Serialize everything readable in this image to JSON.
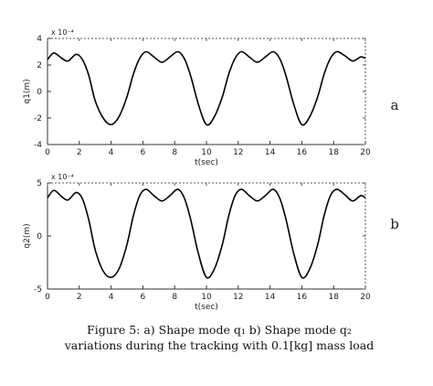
{
  "chart_data": [
    {
      "type": "line",
      "panel_label": "a",
      "xlabel": "t(sec)",
      "ylabel": "q1(m)",
      "exponent_label": "x 10⁻⁴",
      "xlim": [
        0,
        20
      ],
      "ylim": [
        -4,
        4
      ],
      "xticks": [
        0,
        2,
        4,
        6,
        8,
        10,
        12,
        14,
        16,
        18,
        20
      ],
      "xtick_labels": [
        "0",
        "2",
        "4",
        "6",
        "8",
        "10",
        "12",
        "14",
        "16",
        "18",
        "20"
      ],
      "yticks": [
        -4,
        -2,
        0,
        2,
        4
      ],
      "ytick_labels": [
        "-4",
        "-2",
        "0",
        "2",
        "4"
      ],
      "grid": false,
      "series": [
        {
          "color": "#000000",
          "x": [
            0,
            0.4,
            0.9,
            1.3,
            1.8,
            2.2,
            2.6,
            3.0,
            3.5,
            4.0,
            4.5,
            5.0,
            5.4,
            5.8,
            6.2,
            6.7,
            7.2,
            7.7,
            8.2,
            8.6,
            9.0,
            9.5,
            10.0,
            10.5,
            11.0,
            11.4,
            11.8,
            12.2,
            12.7,
            13.2,
            13.7,
            14.2,
            14.6,
            15.0,
            15.5,
            16.0,
            16.5,
            17.0,
            17.4,
            17.8,
            18.2,
            18.7,
            19.2,
            19.7,
            20.0
          ],
          "y": [
            2.4,
            2.9,
            2.5,
            2.3,
            2.8,
            2.4,
            1.2,
            -0.7,
            -2.0,
            -2.5,
            -1.9,
            -0.4,
            1.3,
            2.5,
            3.0,
            2.6,
            2.2,
            2.6,
            3.0,
            2.5,
            1.2,
            -1.0,
            -2.5,
            -1.9,
            -0.4,
            1.3,
            2.5,
            3.0,
            2.6,
            2.2,
            2.6,
            3.0,
            2.5,
            1.2,
            -1.0,
            -2.5,
            -1.9,
            -0.4,
            1.3,
            2.5,
            3.0,
            2.7,
            2.3,
            2.6,
            2.5
          ]
        }
      ]
    },
    {
      "type": "line",
      "panel_label": "b",
      "xlabel": "t(sec)",
      "ylabel": "q2(m)",
      "exponent_label": "x 10⁻⁴",
      "xlim": [
        0,
        20
      ],
      "ylim": [
        -5,
        5
      ],
      "xticks": [
        0,
        2,
        4,
        6,
        8,
        10,
        12,
        14,
        16,
        18,
        20
      ],
      "xtick_labels": [
        "0",
        "2",
        "4",
        "6",
        "8",
        "10",
        "12",
        "14",
        "16",
        "18",
        "20"
      ],
      "yticks": [
        -5,
        0,
        5
      ],
      "ytick_labels": [
        "-5",
        "0",
        "5"
      ],
      "grid": false,
      "series": [
        {
          "color": "#000000",
          "x": [
            0,
            0.4,
            0.9,
            1.3,
            1.8,
            2.2,
            2.6,
            3.0,
            3.5,
            4.0,
            4.5,
            5.0,
            5.4,
            5.8,
            6.2,
            6.7,
            7.2,
            7.7,
            8.2,
            8.6,
            9.0,
            9.5,
            10.0,
            10.5,
            11.0,
            11.4,
            11.8,
            12.2,
            12.7,
            13.2,
            13.7,
            14.2,
            14.6,
            15.0,
            15.5,
            16.0,
            16.5,
            17.0,
            17.4,
            17.8,
            18.2,
            18.7,
            19.2,
            19.7,
            20.0
          ],
          "y": [
            3.6,
            4.3,
            3.7,
            3.4,
            4.1,
            3.5,
            1.5,
            -1.3,
            -3.3,
            -3.9,
            -3.1,
            -0.8,
            1.9,
            3.8,
            4.4,
            3.8,
            3.3,
            3.8,
            4.4,
            3.6,
            1.6,
            -1.7,
            -3.9,
            -3.1,
            -0.8,
            1.9,
            3.8,
            4.4,
            3.8,
            3.3,
            3.8,
            4.4,
            3.6,
            1.6,
            -1.7,
            -3.9,
            -3.1,
            -0.8,
            1.9,
            3.8,
            4.4,
            3.9,
            3.3,
            3.8,
            3.6
          ]
        }
      ]
    }
  ],
  "caption": {
    "line1": "Figure 5: a) Shape mode q₁   b) Shape mode q₂",
    "line2": "variations during the tracking with 0.1[kg] mass load"
  }
}
